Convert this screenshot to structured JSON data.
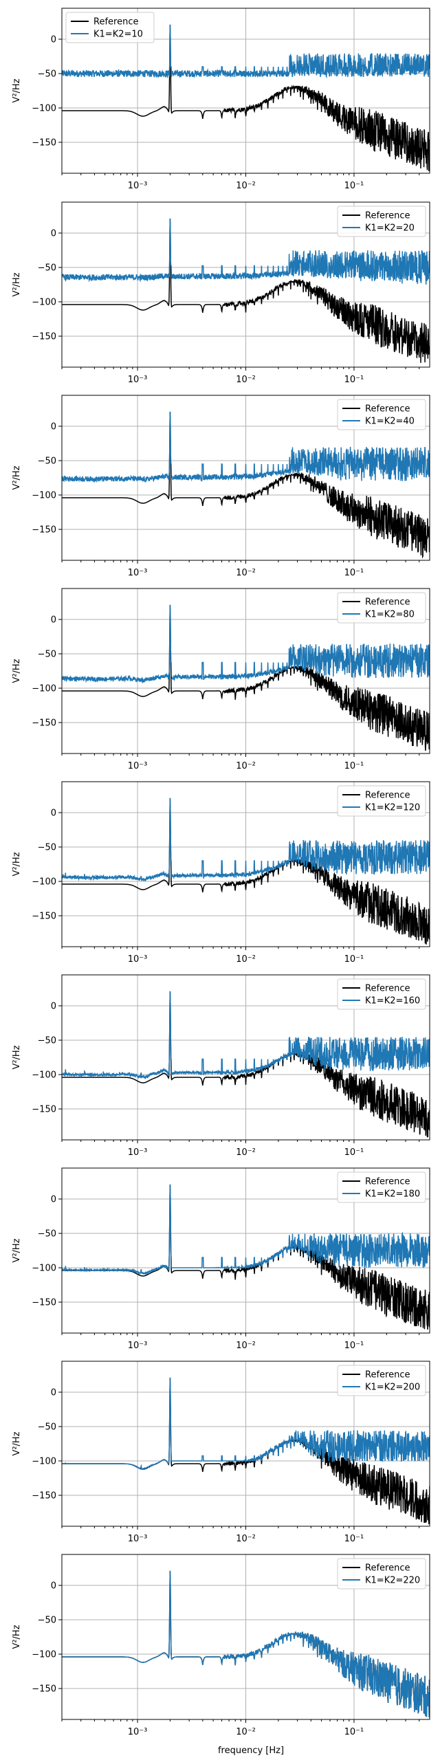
{
  "figure": {
    "xlabel": "frequency [Hz]"
  },
  "colors": {
    "reference": "#000000",
    "series": "#1f77b4",
    "grid": "#b0b0b0"
  },
  "chart_data": [
    {
      "type": "line",
      "xscale": "log",
      "xlim": [
        0.0002,
        0.5
      ],
      "ylim": [
        -195,
        45
      ],
      "ylabel": "V²/Hz",
      "yticks": [
        0,
        -50,
        -100,
        -150
      ],
      "xticks": [
        "10⁻³",
        "10⁻²",
        "10⁻¹"
      ],
      "legend": "top-left",
      "grid": true,
      "series": [
        {
          "name": "Reference"
        },
        {
          "name": "K1=K2=10"
        }
      ]
    },
    {
      "type": "line",
      "xscale": "log",
      "xlim": [
        0.0002,
        0.5
      ],
      "ylim": [
        -195,
        45
      ],
      "ylabel": "V²/Hz",
      "yticks": [
        0,
        -50,
        -100,
        -150
      ],
      "xticks": [
        "10⁻³",
        "10⁻²",
        "10⁻¹"
      ],
      "legend": "top-right",
      "grid": true,
      "series": [
        {
          "name": "Reference"
        },
        {
          "name": "K1=K2=20"
        }
      ]
    },
    {
      "type": "line",
      "xscale": "log",
      "xlim": [
        0.0002,
        0.5
      ],
      "ylim": [
        -195,
        45
      ],
      "ylabel": "V²/Hz",
      "yticks": [
        0,
        -50,
        -100,
        -150
      ],
      "xticks": [
        "10⁻³",
        "10⁻²",
        "10⁻¹"
      ],
      "legend": "top-right",
      "grid": true,
      "series": [
        {
          "name": "Reference"
        },
        {
          "name": "K1=K2=40"
        }
      ]
    },
    {
      "type": "line",
      "xscale": "log",
      "xlim": [
        0.0002,
        0.5
      ],
      "ylim": [
        -195,
        45
      ],
      "ylabel": "V²/Hz",
      "yticks": [
        0,
        -50,
        -100,
        -150
      ],
      "xticks": [
        "10⁻³",
        "10⁻²",
        "10⁻¹"
      ],
      "legend": "top-right",
      "grid": true,
      "series": [
        {
          "name": "Reference"
        },
        {
          "name": "K1=K2=80"
        }
      ]
    },
    {
      "type": "line",
      "xscale": "log",
      "xlim": [
        0.0002,
        0.5
      ],
      "ylim": [
        -195,
        45
      ],
      "ylabel": "V²/Hz",
      "yticks": [
        0,
        -50,
        -100,
        -150
      ],
      "xticks": [
        "10⁻³",
        "10⁻²",
        "10⁻¹"
      ],
      "legend": "top-right",
      "grid": true,
      "series": [
        {
          "name": "Reference"
        },
        {
          "name": "K1=K2=120"
        }
      ]
    },
    {
      "type": "line",
      "xscale": "log",
      "xlim": [
        0.0002,
        0.5
      ],
      "ylim": [
        -195,
        45
      ],
      "ylabel": "V²/Hz",
      "yticks": [
        0,
        -50,
        -100,
        -150
      ],
      "xticks": [
        "10⁻³",
        "10⁻²",
        "10⁻¹"
      ],
      "legend": "top-right",
      "grid": true,
      "series": [
        {
          "name": "Reference"
        },
        {
          "name": "K1=K2=160"
        }
      ]
    },
    {
      "type": "line",
      "xscale": "log",
      "xlim": [
        0.0002,
        0.5
      ],
      "ylim": [
        -195,
        45
      ],
      "ylabel": "V²/Hz",
      "yticks": [
        0,
        -50,
        -100,
        -150
      ],
      "xticks": [
        "10⁻³",
        "10⁻²",
        "10⁻¹"
      ],
      "legend": "top-right",
      "grid": true,
      "series": [
        {
          "name": "Reference"
        },
        {
          "name": "K1=K2=180"
        }
      ]
    },
    {
      "type": "line",
      "xscale": "log",
      "xlim": [
        0.0002,
        0.5
      ],
      "ylim": [
        -195,
        45
      ],
      "ylabel": "V²/Hz",
      "yticks": [
        0,
        -50,
        -100,
        -150
      ],
      "xticks": [
        "10⁻³",
        "10⁻²",
        "10⁻¹"
      ],
      "legend": "top-right",
      "grid": true,
      "series": [
        {
          "name": "Reference"
        },
        {
          "name": "K1=K2=200"
        }
      ]
    },
    {
      "type": "line",
      "xscale": "log",
      "xlim": [
        0.0002,
        0.5
      ],
      "ylim": [
        -195,
        45
      ],
      "ylabel": "V²/Hz",
      "yticks": [
        0,
        -50,
        -100,
        -150
      ],
      "xticks": [
        "10⁻³",
        "10⁻²",
        "10⁻¹"
      ],
      "legend": "top-right",
      "grid": true,
      "series": [
        {
          "name": "Reference"
        },
        {
          "name": "K1=K2=220"
        }
      ]
    }
  ]
}
